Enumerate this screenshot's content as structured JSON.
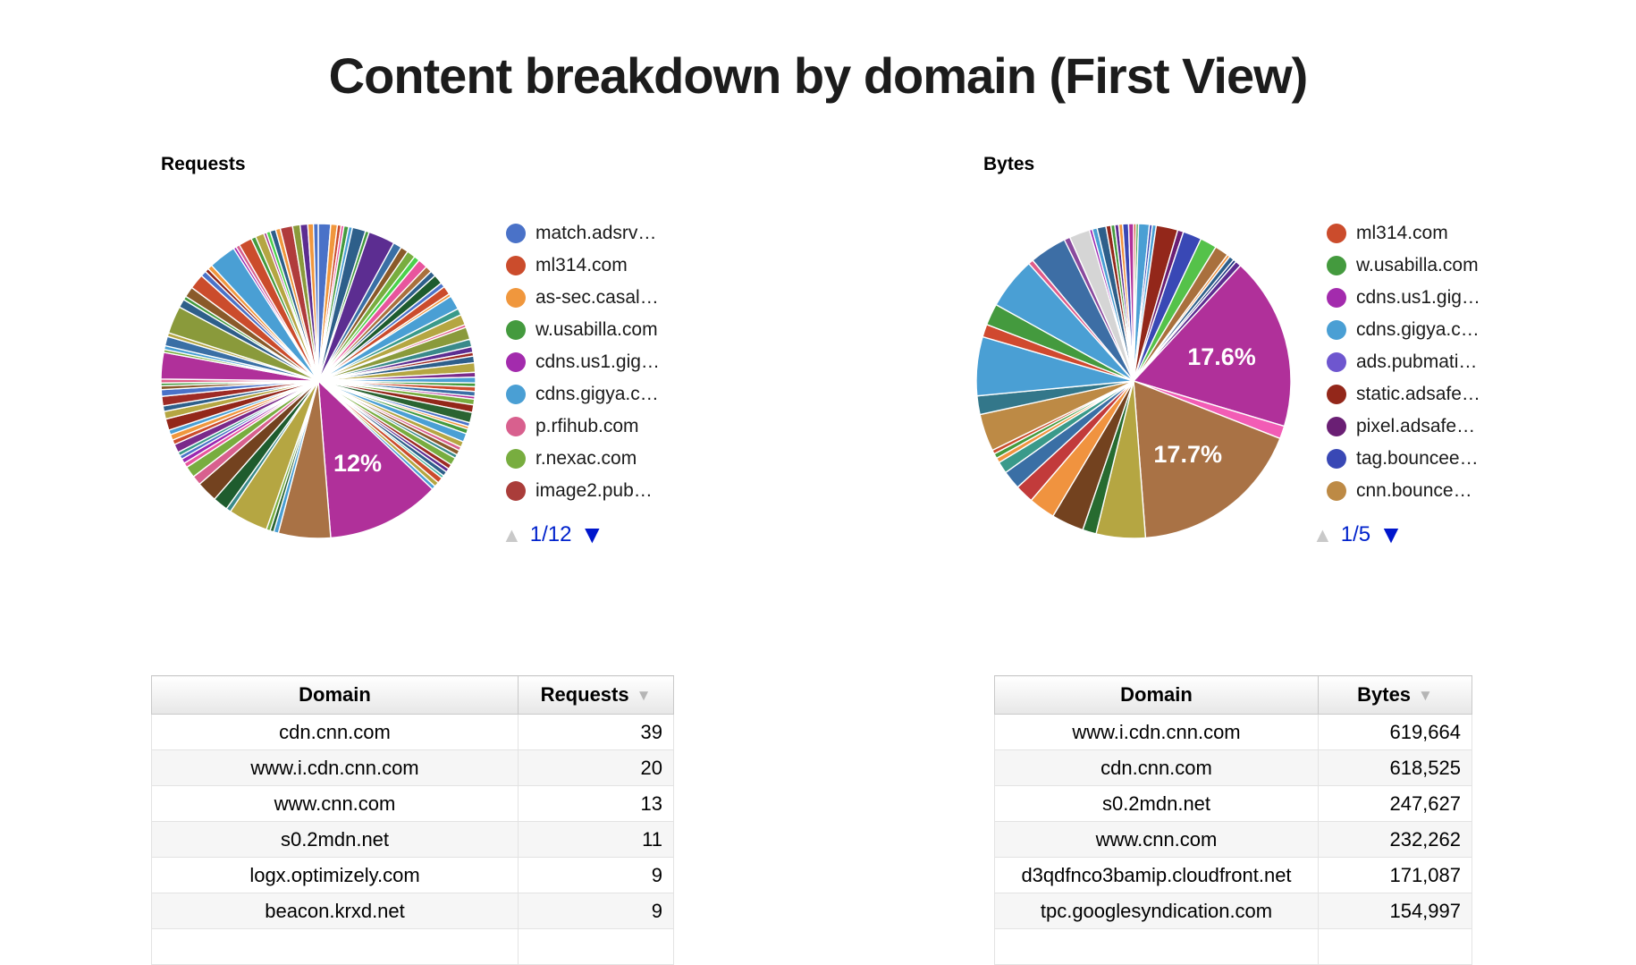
{
  "page": {
    "title": "Content breakdown by domain (First View)"
  },
  "sections": {
    "requests": {
      "label": "Requests",
      "legend": [
        {
          "label": "match.adsrv…",
          "color": "#4a72c8"
        },
        {
          "label": "ml314.com",
          "color": "#cb4c2c"
        },
        {
          "label": "as-sec.casal…",
          "color": "#f0973d"
        },
        {
          "label": "w.usabilla.com",
          "color": "#449a3e"
        },
        {
          "label": "cdns.us1.gig…",
          "color": "#a32bad"
        },
        {
          "label": "cdns.gigya.c…",
          "color": "#4a9fd4"
        },
        {
          "label": "p.rfihub.com",
          "color": "#d8608e"
        },
        {
          "label": "r.nexac.com",
          "color": "#78ad3f"
        },
        {
          "label": "image2.pub…",
          "color": "#aa3d3a"
        }
      ],
      "pagination": {
        "up_icon": "▲",
        "page": "1/12",
        "down_icon": "▼"
      }
    },
    "bytes": {
      "label": "Bytes",
      "legend": [
        {
          "label": "ml314.com",
          "color": "#cb4c2c"
        },
        {
          "label": "w.usabilla.com",
          "color": "#449a3e"
        },
        {
          "label": "cdns.us1.gig…",
          "color": "#a32bad"
        },
        {
          "label": "cdns.gigya.c…",
          "color": "#4a9fd4"
        },
        {
          "label": "ads.pubmati…",
          "color": "#6e56cf"
        },
        {
          "label": "static.adsafe…",
          "color": "#93271a"
        },
        {
          "label": "pixel.adsafe…",
          "color": "#6a1f74"
        },
        {
          "label": "tag.bouncee…",
          "color": "#3948b5"
        },
        {
          "label": "cnn.bounce…",
          "color": "#bd8a45"
        }
      ],
      "pagination": {
        "up_icon": "▲",
        "page": "1/5",
        "down_icon": "▼"
      }
    }
  },
  "chart_data": [
    {
      "name": "requests-pie",
      "type": "pie",
      "title": "Requests",
      "data_labels": [
        "12%"
      ],
      "slices": [
        [
          "#4a72c8",
          1.3
        ],
        [
          "#f0973d",
          0.7
        ],
        [
          "#cb4c2c",
          0.4
        ],
        [
          "#e8559d",
          0.3
        ],
        [
          "#449a3e",
          0.5
        ],
        [
          "#4a9fd4",
          0.4
        ],
        [
          "#2e5f8a",
          1.4
        ],
        [
          "#449a3e",
          0.4
        ],
        [
          "#5c2d91",
          2.8
        ],
        [
          "#3a6fa5",
          0.9
        ],
        [
          "#8a5a2a",
          0.8
        ],
        [
          "#78ad3f",
          0.9
        ],
        [
          "#4bd24b",
          0.6
        ],
        [
          "#e8559d",
          1.0
        ],
        [
          "#a9703d",
          0.7
        ],
        [
          "#2e5f8a",
          0.6
        ],
        [
          "#1e5c2e",
          1.0
        ],
        [
          "#4a72c8",
          0.5
        ],
        [
          "#cb4c2c",
          0.9
        ],
        [
          "#f0973d",
          0.3
        ],
        [
          "#4a9fd4",
          1.5
        ],
        [
          "#3a9a8a",
          0.7
        ],
        [
          "#b5a642",
          1.1
        ],
        [
          "#e05c8a",
          0.3
        ],
        [
          "#8a9a3b",
          1.3
        ],
        [
          "#3a8a8a",
          0.8
        ],
        [
          "#5c2d91",
          0.6
        ],
        [
          "#9e2b25",
          0.4
        ],
        [
          "#2e5f8a",
          0.7
        ],
        [
          "#b5a642",
          1.0
        ],
        [
          "#7a2a8a",
          0.5
        ],
        [
          "#4a9fd4",
          0.6
        ],
        [
          "#449a3e",
          0.4
        ],
        [
          "#cb4c2c",
          0.5
        ],
        [
          "#3a6fa5",
          0.5
        ],
        [
          "#b0309a",
          0.3
        ],
        [
          "#78ad3f",
          0.6
        ],
        [
          "#93271a",
          0.8
        ],
        [
          "#2a6432",
          1.1
        ],
        [
          "#4a72c8",
          0.4
        ],
        [
          "#f0973d",
          0.3
        ],
        [
          "#449a3e",
          0.5
        ],
        [
          "#4a9fd4",
          0.9
        ],
        [
          "#b5a642",
          0.6
        ],
        [
          "#d8608e",
          0.4
        ],
        [
          "#8a5a2a",
          0.5
        ],
        [
          "#3a8a8a",
          0.4
        ],
        [
          "#78ad3f",
          0.8
        ],
        [
          "#9e2b25",
          0.5
        ],
        [
          "#5c2d91",
          0.4
        ],
        [
          "#2e5f8a",
          0.5
        ],
        [
          "#43b5a0",
          0.3
        ],
        [
          "#cb4c2c",
          0.6
        ],
        [
          "#b5a642",
          0.5
        ],
        [
          "#4a9fd4",
          0.4
        ],
        [
          "#b0309a",
          12,
          "12%"
        ],
        [
          "#a97245",
          5.5
        ],
        [
          "#4a9fd4",
          0.5
        ],
        [
          "#2a6432",
          0.4
        ],
        [
          "#78ad3f",
          0.4
        ],
        [
          "#b5a642",
          4.2
        ],
        [
          "#3a8a8a",
          0.5
        ],
        [
          "#1e5c2e",
          1.6
        ],
        [
          "#73421f",
          2.2
        ],
        [
          "#d8608e",
          1.0
        ],
        [
          "#78ad3f",
          1.2
        ],
        [
          "#e8559d",
          0.5
        ],
        [
          "#9c27b0",
          0.5
        ],
        [
          "#4a72c8",
          0.4
        ],
        [
          "#3a9a8a",
          0.4
        ],
        [
          "#7a2a8a",
          0.9
        ],
        [
          "#cb4c2c",
          0.5
        ],
        [
          "#f0973d",
          0.6
        ],
        [
          "#4a9fd4",
          0.5
        ],
        [
          "#93271a",
          1.2
        ],
        [
          "#b5a642",
          0.8
        ],
        [
          "#2e5f8a",
          0.6
        ],
        [
          "#9e2b25",
          1.0
        ],
        [
          "#4a72c8",
          0.7
        ],
        [
          "#8a5a2a",
          0.4
        ],
        [
          "#449a3e",
          0.3
        ],
        [
          "#e05c8a",
          0.4
        ],
        [
          "#b0309a",
          2.8
        ],
        [
          "#78ad3f",
          0.3
        ],
        [
          "#4a9fd4",
          0.4
        ],
        [
          "#3a6fa5",
          1.0
        ],
        [
          "#b5a642",
          0.4
        ],
        [
          "#8a9a3b",
          2.9
        ],
        [
          "#2e5f8a",
          0.9
        ],
        [
          "#449a3e",
          0.4
        ],
        [
          "#8a5a2a",
          1.1
        ],
        [
          "#cb4c2c",
          1.6
        ],
        [
          "#4a72c8",
          0.6
        ],
        [
          "#93271a",
          0.4
        ],
        [
          "#f0973d",
          0.5
        ],
        [
          "#4a9fd4",
          2.9
        ],
        [
          "#9c27b0",
          0.3
        ],
        [
          "#d8608e",
          0.4
        ],
        [
          "#cb4c2c",
          1.4
        ],
        [
          "#449a3e",
          0.5
        ],
        [
          "#b5a642",
          0.9
        ],
        [
          "#a83c8a",
          0.3
        ],
        [
          "#4bd24b",
          0.4
        ],
        [
          "#2e5f8a",
          0.6
        ],
        [
          "#f0973d",
          0.5
        ],
        [
          "#b03c3c",
          1.3
        ],
        [
          "#8a9a3b",
          0.8
        ],
        [
          "#5c2d91",
          0.8
        ],
        [
          "#f0973d",
          0.6
        ],
        [
          "#4a72c8",
          0.5
        ]
      ]
    },
    {
      "name": "bytes-pie",
      "type": "pie",
      "title": "Bytes",
      "data_labels": [
        "17.6%",
        "17.7%"
      ],
      "slices": [
        [
          "#cb4c2c",
          0.25
        ],
        [
          "#449a3e",
          0.25
        ],
        [
          "#4a9fd4",
          1.1
        ],
        [
          "#3948b5",
          0.3
        ],
        [
          "#4a9fd4",
          0.4
        ],
        [
          "#93271a",
          2.2
        ],
        [
          "#6a1f74",
          0.6
        ],
        [
          "#3948b5",
          1.9
        ],
        [
          "#55c24a",
          1.7
        ],
        [
          "#a9703d",
          1.4
        ],
        [
          "#f0933f",
          0.3
        ],
        [
          "#2e5f8a",
          0.5
        ],
        [
          "#1a2f7e",
          0.3
        ],
        [
          "#5c2d91",
          0.6
        ],
        [
          "#b0309a",
          17.6,
          "17.6%"
        ],
        [
          "#f25cb5",
          1.3
        ],
        [
          "#a97245",
          17.7,
          "17.7%"
        ],
        [
          "#b5a642",
          5.0
        ],
        [
          "#276b30",
          1.4
        ],
        [
          "#73421f",
          3.3
        ],
        [
          "#f0933f",
          2.7
        ],
        [
          "#c23b3b",
          1.9
        ],
        [
          "#3a6fa5",
          1.9
        ],
        [
          "#3a9a8a",
          1.2
        ],
        [
          "#f0933f",
          0.5
        ],
        [
          "#449a3e",
          0.5
        ],
        [
          "#cb4c2c",
          0.4
        ],
        [
          "#bd8a45",
          3.8
        ],
        [
          "#33778a",
          1.9
        ],
        [
          "#4a9fd4",
          6.0
        ],
        [
          "#d0492f",
          1.3
        ],
        [
          "#449a3e",
          2.2
        ],
        [
          "#4a9fd4",
          5.3
        ],
        [
          "#e05c8a",
          0.5
        ],
        [
          "#3d6ea5",
          3.8
        ],
        [
          "#8a4a9e",
          0.6
        ],
        [
          "#d5d5d5",
          2.1
        ],
        [
          "#9c27b0",
          0.3
        ],
        [
          "#4a9fd4",
          0.5
        ],
        [
          "#2e5f8a",
          0.9
        ],
        [
          "#93271a",
          0.5
        ],
        [
          "#449a3e",
          0.4
        ],
        [
          "#5c2d91",
          0.4
        ],
        [
          "#f0933f",
          0.4
        ],
        [
          "#3948b5",
          0.6
        ],
        [
          "#b0309a",
          0.5
        ]
      ]
    }
  ],
  "tables": {
    "requests": {
      "headers": [
        "Domain",
        "Requests"
      ],
      "sort_icon": "▼",
      "rows": [
        [
          "cdn.cnn.com",
          "39"
        ],
        [
          "www.i.cdn.cnn.com",
          "20"
        ],
        [
          "www.cnn.com",
          "13"
        ],
        [
          "s0.2mdn.net",
          "11"
        ],
        [
          "logx.optimizely.com",
          "9"
        ],
        [
          "beacon.krxd.net",
          "9"
        ],
        [
          "",
          ""
        ]
      ]
    },
    "bytes": {
      "headers": [
        "Domain",
        "Bytes"
      ],
      "sort_icon": "▼",
      "rows": [
        [
          "www.i.cdn.cnn.com",
          "619,664"
        ],
        [
          "cdn.cnn.com",
          "618,525"
        ],
        [
          "s0.2mdn.net",
          "247,627"
        ],
        [
          "www.cnn.com",
          "232,262"
        ],
        [
          "d3qdfnco3bamip.cloudfront.net",
          "171,087"
        ],
        [
          "tpc.googlesyndication.com",
          "154,997"
        ],
        [
          "",
          ""
        ]
      ]
    }
  }
}
